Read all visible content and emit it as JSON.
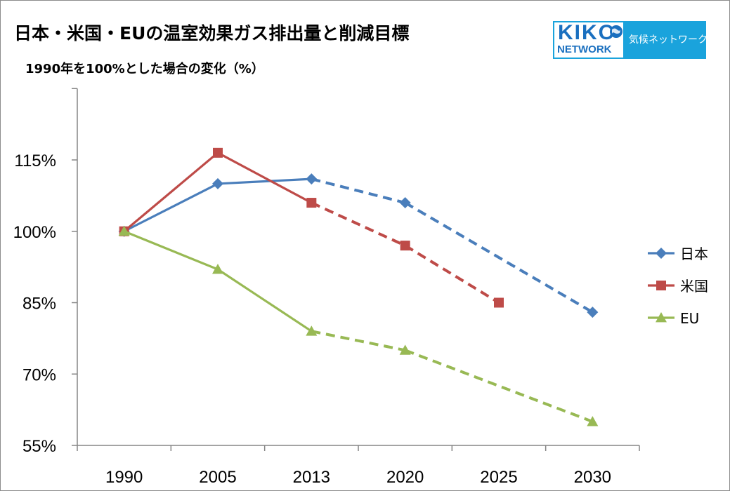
{
  "title": "日本・米国・EUの温室効果ガス排出量と削減目標",
  "subtitle": "1990年を100%とした場合の変化（%）",
  "logo": {
    "kiko": "KIKO",
    "network": "NETWORK",
    "jp": "気候ネットワーク",
    "brand_color": "#1aa3dc",
    "icon": "globe-icon"
  },
  "chart_data": {
    "type": "line",
    "categories": [
      "1990",
      "2005",
      "2013",
      "2020",
      "2025",
      "2030"
    ],
    "ylim": [
      55,
      130
    ],
    "yticks": [
      55,
      70,
      85,
      100,
      115
    ],
    "ytick_labels": [
      "55%",
      "70%",
      "85%",
      "100%",
      "115%"
    ],
    "grid": false,
    "legend_position": "right",
    "series": [
      {
        "name": "日本",
        "color": "#4a7ebb",
        "marker": "diamond",
        "points": [
          {
            "x": "1990",
            "y": 100
          },
          {
            "x": "2005",
            "y": 110
          },
          {
            "x": "2013",
            "y": 111
          },
          {
            "x": "2020",
            "y": 106
          },
          {
            "x": "2030",
            "y": 83
          }
        ],
        "solid_segments": 2
      },
      {
        "name": "米国",
        "color": "#be4b48",
        "marker": "square",
        "points": [
          {
            "x": "1990",
            "y": 100
          },
          {
            "x": "2005",
            "y": 116.5
          },
          {
            "x": "2013",
            "y": 106
          },
          {
            "x": "2020",
            "y": 97
          },
          {
            "x": "2025",
            "y": 85
          }
        ],
        "solid_segments": 2
      },
      {
        "name": "EU",
        "color": "#98b954",
        "marker": "triangle",
        "points": [
          {
            "x": "1990",
            "y": 100
          },
          {
            "x": "2005",
            "y": 92
          },
          {
            "x": "2013",
            "y": 79
          },
          {
            "x": "2020",
            "y": 75
          },
          {
            "x": "2030",
            "y": 60
          }
        ],
        "solid_segments": 2
      }
    ]
  }
}
